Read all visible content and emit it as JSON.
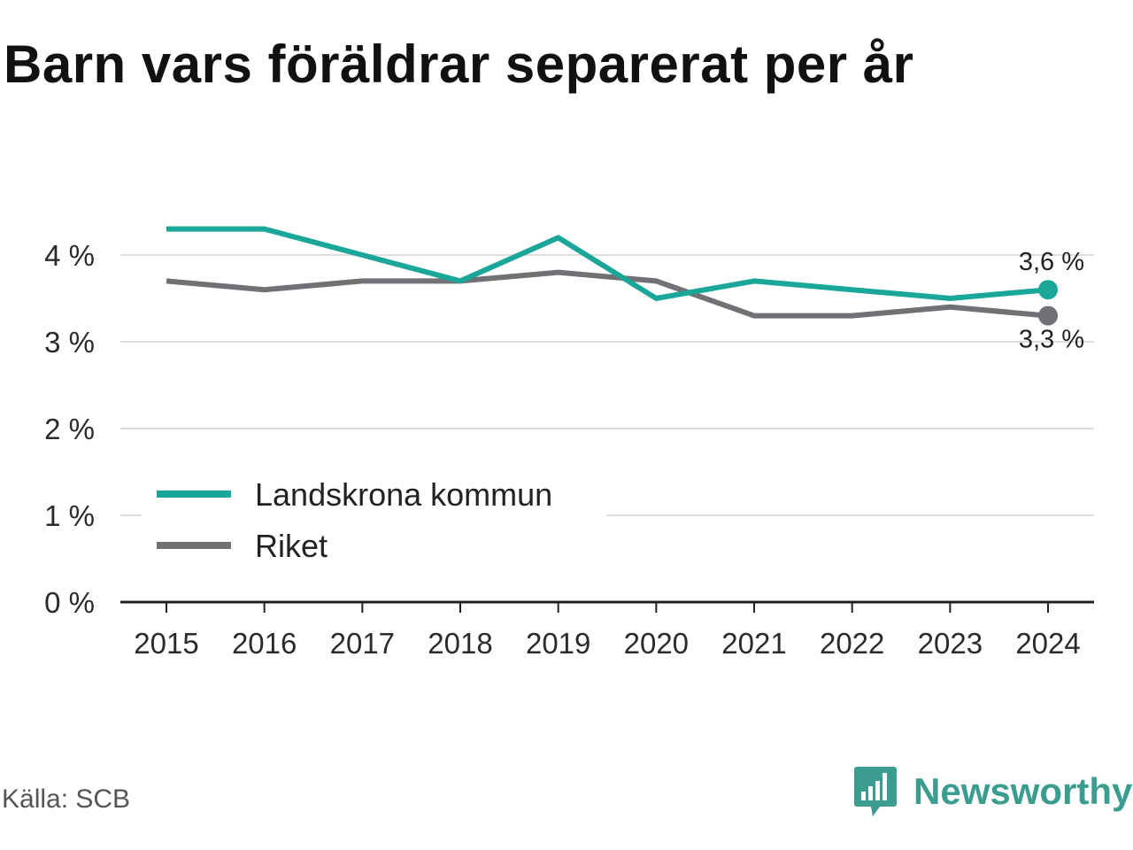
{
  "chart_data": {
    "type": "line",
    "title": "Barn vars föräldrar separerat per år",
    "categories": [
      "2015",
      "2016",
      "2017",
      "2018",
      "2019",
      "2020",
      "2021",
      "2022",
      "2023",
      "2024"
    ],
    "y_ticks": [
      "0 %",
      "1 %",
      "2 %",
      "3 %",
      "4 %"
    ],
    "ylim": [
      0,
      4.8
    ],
    "grid": true,
    "legend_position": "bottom-left",
    "series": [
      {
        "name": "Landskrona kommun",
        "color": "#1aa698",
        "values": [
          4.3,
          4.3,
          4.0,
          3.7,
          4.2,
          3.5,
          3.7,
          3.6,
          3.5,
          3.6
        ],
        "end_label": "3,6 %"
      },
      {
        "name": "Riket",
        "color": "#707075",
        "values": [
          3.7,
          3.6,
          3.7,
          3.7,
          3.8,
          3.7,
          3.3,
          3.3,
          3.4,
          3.3
        ],
        "end_label": "3,3 %"
      }
    ]
  },
  "footer": {
    "source": "Källa: SCB",
    "brand": "Newsworthy",
    "brand_icon": "newsworthy-logo-icon"
  }
}
